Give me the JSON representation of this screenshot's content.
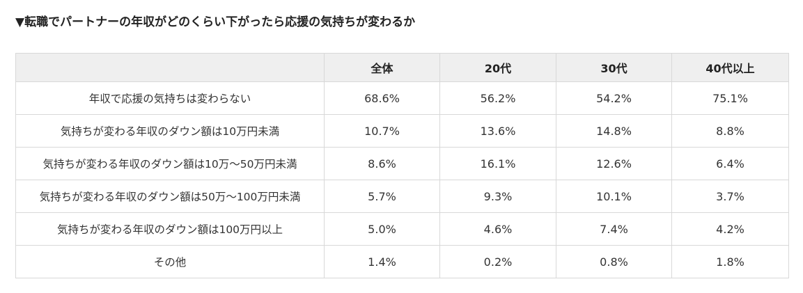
{
  "heading": "▼転職でパートナーの年収がどのくらい下がったら応援の気持ちが変わるか",
  "table": {
    "columns": [
      "",
      "全体",
      "20代",
      "30代",
      "40代以上"
    ],
    "rows": [
      {
        "label": "年収で応援の気持ちは変わらない",
        "values": [
          "68.6%",
          "56.2%",
          "54.2%",
          "75.1%"
        ]
      },
      {
        "label": "気持ちが変わる年収のダウン額は10万円未満",
        "values": [
          "10.7%",
          "13.6%",
          "14.8%",
          "8.8%"
        ]
      },
      {
        "label": "気持ちが変わる年収のダウン額は10万〜50万円未満",
        "values": [
          "8.6%",
          "16.1%",
          "12.6%",
          "6.4%"
        ]
      },
      {
        "label": "気持ちが変わる年収のダウン額は50万〜100万円未満",
        "values": [
          "5.7%",
          "9.3%",
          "10.1%",
          "3.7%"
        ]
      },
      {
        "label": "気持ちが変わる年収のダウン額は100万円以上",
        "values": [
          "5.0%",
          "4.6%",
          "7.4%",
          "4.2%"
        ]
      },
      {
        "label": "その他",
        "values": [
          "1.4%",
          "0.2%",
          "0.8%",
          "1.8%"
        ]
      }
    ]
  },
  "colors": {
    "header_background": "#efefef",
    "border": "#d8d8d8",
    "text": "#333333"
  }
}
